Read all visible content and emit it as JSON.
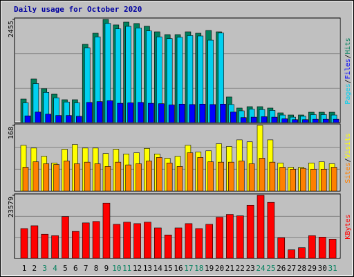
{
  "title": "Daily usage for October 2020",
  "legend_separator": "/",
  "chart_data": [
    {
      "type": "bar",
      "ylim": [
        0,
        2455
      ],
      "yticks": [
        2455
      ],
      "grid_divisions": 3,
      "legend_order": [
        1,
        2,
        0
      ],
      "series": [
        {
          "name": "Hits",
          "color": "#00805c",
          "values": [
            560,
            1038,
            808,
            676,
            544,
            544,
            1862,
            2126,
            2455,
            2324,
            2390,
            2357,
            2291,
            2159,
            2093,
            2093,
            2159,
            2126,
            2192,
            2159,
            610,
            346,
            379,
            379,
            346,
            231,
            181,
            181,
            247,
            247,
            247
          ]
        },
        {
          "name": "Pages",
          "color": "#00d0f0",
          "values": [
            470,
            930,
            720,
            590,
            490,
            470,
            1780,
            2040,
            2360,
            2230,
            2290,
            2250,
            2180,
            2040,
            2000,
            2030,
            2070,
            2060,
            1960,
            2130,
            430,
            280,
            320,
            310,
            290,
            180,
            130,
            150,
            190,
            190,
            180
          ]
        },
        {
          "name": "Files",
          "color": "#0000ff",
          "values": [
            160,
            250,
            200,
            170,
            170,
            150,
            480,
            500,
            520,
            460,
            470,
            480,
            460,
            450,
            420,
            440,
            430,
            440,
            430,
            440,
            250,
            120,
            130,
            140,
            130,
            90,
            70,
            70,
            80,
            80,
            80
          ]
        }
      ]
    },
    {
      "type": "bar",
      "ylim": [
        0,
        168
      ],
      "yticks": [
        168
      ],
      "grid_divisions": 3,
      "legend_order": [
        1,
        0
      ],
      "series": [
        {
          "name": "Visits",
          "color": "#ffff00",
          "values": [
            117,
            110,
            89,
            72,
            107,
            119,
            110,
            110,
            96,
            107,
            95,
            98,
            109,
            95,
            84,
            89,
            117,
            100,
            103,
            121,
            114,
            131,
            126,
            168,
            131,
            72,
            61,
            61,
            72,
            75,
            70
          ]
        },
        {
          "name": "Sites",
          "color": "#ff8000",
          "values": [
            61,
            75,
            70,
            68,
            77,
            70,
            74,
            70,
            63,
            74,
            67,
            70,
            77,
            86,
            72,
            63,
            98,
            86,
            75,
            74,
            74,
            77,
            70,
            84,
            74,
            61,
            56,
            58,
            56,
            56,
            61
          ]
        }
      ]
    },
    {
      "type": "bar",
      "ylim": [
        0,
        23579
      ],
      "yticks": [
        23579
      ],
      "grid_divisions": 3,
      "legend_order": [
        0
      ],
      "categories": [
        "1",
        "2",
        "3",
        "4",
        "5",
        "6",
        "7",
        "8",
        "9",
        "10",
        "11",
        "12",
        "13",
        "14",
        "15",
        "16",
        "17",
        "18",
        "19",
        "20",
        "21",
        "22",
        "23",
        "24",
        "25",
        "26",
        "27",
        "28",
        "29",
        "30",
        "31"
      ],
      "category_colors": [
        "#000000",
        "#000000",
        "#00805c",
        "#00805c",
        "#000000",
        "#000000",
        "#000000",
        "#000000",
        "#000000",
        "#00805c",
        "#00805c",
        "#000000",
        "#000000",
        "#000000",
        "#000000",
        "#000000",
        "#00805c",
        "#00805c",
        "#000000",
        "#000000",
        "#000000",
        "#000000",
        "#000000",
        "#00805c",
        "#00805c",
        "#000000",
        "#000000",
        "#000000",
        "#000000",
        "#000000",
        "#00805c"
      ],
      "series": [
        {
          "name": "KBytes",
          "color": "#ff0000",
          "values": [
            11130,
            12190,
            9010,
            8480,
            15635,
            10070,
            13250,
            13780,
            20670,
            12720,
            13515,
            12985,
            13515,
            11395,
            8745,
            11395,
            12985,
            11130,
            12720,
            15370,
            16430,
            15900,
            19875,
            23579,
            20935,
            7685,
            3180,
            3975,
            8480,
            7950,
            7155
          ]
        }
      ]
    }
  ]
}
